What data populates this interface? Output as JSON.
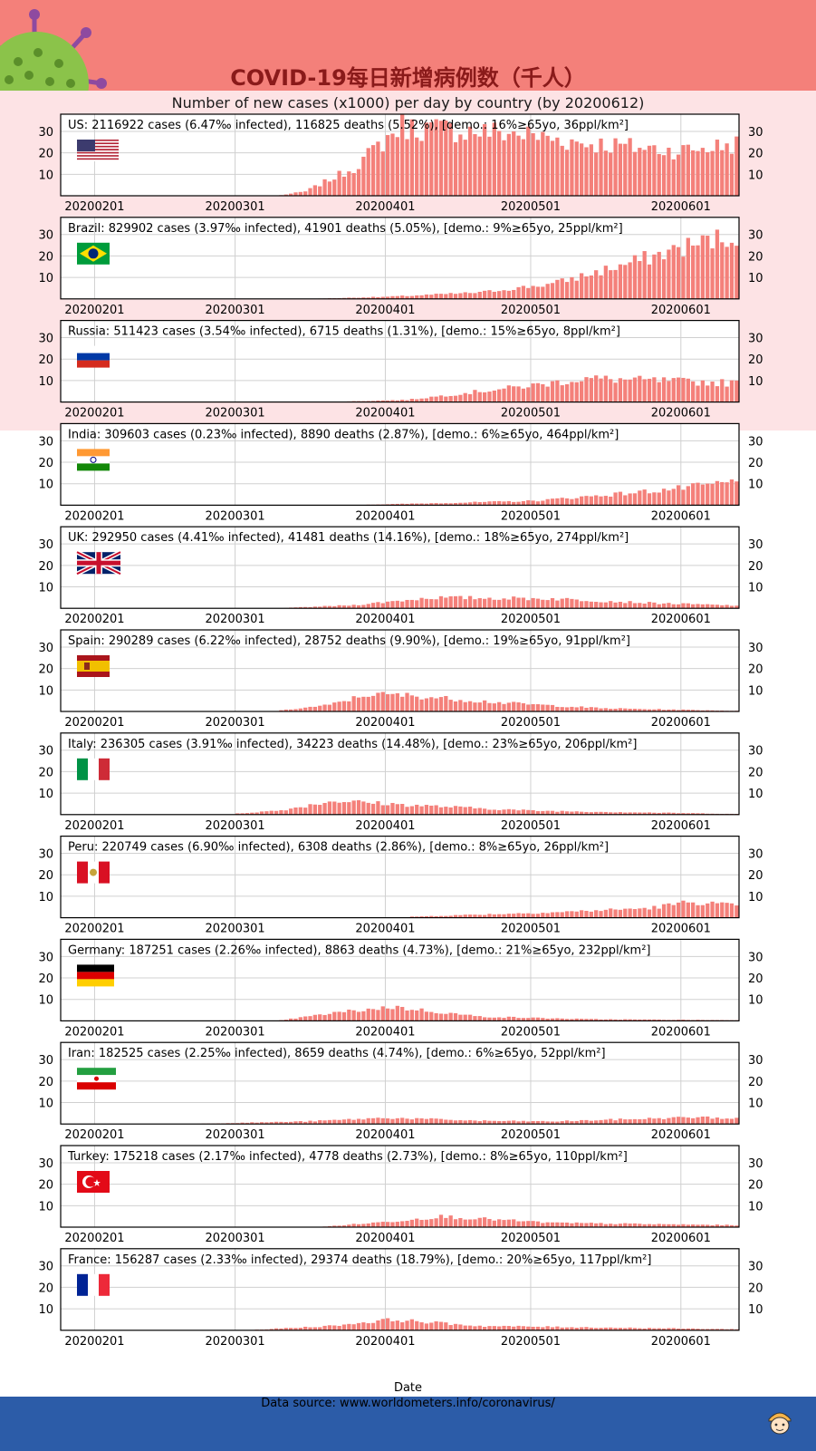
{
  "header": {
    "title": "COVID-19每日新增病例数（千人）",
    "subtitle": "Number of new cases (x1000) per day by country (by 20200612)"
  },
  "chart_data": {
    "type": "bar",
    "unit": "new cases (x1000) per day",
    "x_start": "20200125",
    "x_end": "20200612",
    "xticks": [
      "20200201",
      "20200301",
      "20200401",
      "20200501",
      "20200601"
    ],
    "yticks": [
      10,
      20,
      30
    ],
    "ylim": [
      0,
      38
    ],
    "xlabel": "Date",
    "bar_color": "#f4807a",
    "grid": true,
    "panels": [
      {
        "country": "US",
        "label": "US: 2116922 cases (6.47‰ infected), 116825 deaths (5.52%), [demo.: 16%≥65yo, 36ppl/km²]",
        "flag": "us-flag",
        "series": [
          {
            "start": "20200310",
            "end": "20200315",
            "from": 0.3,
            "to": 2
          },
          {
            "start": "20200315",
            "end": "20200325",
            "from": 2,
            "to": 13
          },
          {
            "start": "20200325",
            "end": "20200404",
            "from": 13,
            "to": 33
          },
          {
            "start": "20200404",
            "end": "20200428",
            "from": 32,
            "to": 29
          },
          {
            "start": "20200428",
            "end": "20200510",
            "from": 29,
            "to": 25
          },
          {
            "start": "20200510",
            "end": "20200531",
            "from": 25,
            "to": 21
          },
          {
            "start": "20200531",
            "end": "20200612",
            "from": 21,
            "to": 24
          }
        ]
      },
      {
        "country": "Brazil",
        "label": "Brazil: 829902 cases (3.97‰ infected), 41901 deaths (5.05%), [demo.: 9%≥65yo, 25ppl/km²]",
        "flag": "brazil-flag",
        "series": [
          {
            "start": "20200317",
            "end": "20200401",
            "from": 0.1,
            "to": 1
          },
          {
            "start": "20200401",
            "end": "20200420",
            "from": 1,
            "to": 3
          },
          {
            "start": "20200420",
            "end": "20200505",
            "from": 3,
            "to": 7
          },
          {
            "start": "20200505",
            "end": "20200520",
            "from": 7,
            "to": 16
          },
          {
            "start": "20200520",
            "end": "20200601",
            "from": 16,
            "to": 24
          },
          {
            "start": "20200601",
            "end": "20200612",
            "from": 24,
            "to": 30
          }
        ]
      },
      {
        "country": "Russia",
        "label": "Russia: 511423 cases (3.54‰ infected), 6715 deaths (1.31%), [demo.: 15%≥65yo, 8ppl/km²]",
        "flag": "russia-flag",
        "series": [
          {
            "start": "20200320",
            "end": "20200405",
            "from": 0.1,
            "to": 1
          },
          {
            "start": "20200405",
            "end": "20200420",
            "from": 1,
            "to": 5
          },
          {
            "start": "20200420",
            "end": "20200502",
            "from": 5,
            "to": 8
          },
          {
            "start": "20200502",
            "end": "20200512",
            "from": 8,
            "to": 11
          },
          {
            "start": "20200512",
            "end": "20200612",
            "from": 11,
            "to": 8.8
          }
        ]
      },
      {
        "country": "India",
        "label": "India: 309603 cases (0.23‰ infected), 8890 deaths (2.87%), [demo.: 6%≥65yo, 464ppl/km²]",
        "flag": "india-flag",
        "series": [
          {
            "start": "20200325",
            "end": "20200420",
            "from": 0.1,
            "to": 1.4
          },
          {
            "start": "20200420",
            "end": "20200501",
            "from": 1.4,
            "to": 2
          },
          {
            "start": "20200501",
            "end": "20200520",
            "from": 2,
            "to": 5.5
          },
          {
            "start": "20200520",
            "end": "20200601",
            "from": 5.5,
            "to": 8
          },
          {
            "start": "20200601",
            "end": "20200612",
            "from": 8,
            "to": 11
          }
        ]
      },
      {
        "country": "UK",
        "label": "UK: 292950 cases (4.41‰ infected), 41481 deaths (14.16%), [demo.: 18%≥65yo, 274ppl/km²]",
        "flag": "uk-flag",
        "series": [
          {
            "start": "20200310",
            "end": "20200325",
            "from": 0.1,
            "to": 1.5
          },
          {
            "start": "20200325",
            "end": "20200410",
            "from": 1.5,
            "to": 5
          },
          {
            "start": "20200410",
            "end": "20200505",
            "from": 5,
            "to": 4.5
          },
          {
            "start": "20200505",
            "end": "20200525",
            "from": 4.5,
            "to": 2.5
          },
          {
            "start": "20200525",
            "end": "20200612",
            "from": 2.5,
            "to": 1.3
          }
        ]
      },
      {
        "country": "Spain",
        "label": "Spain: 290289 cases (6.22‰ infected), 28752 deaths (9.90%), [demo.: 19%≥65yo, 91ppl/km²]",
        "flag": "spain-flag",
        "series": [
          {
            "start": "20200310",
            "end": "20200320",
            "from": 0.5,
            "to": 3
          },
          {
            "start": "20200320",
            "end": "20200328",
            "from": 3,
            "to": 8
          },
          {
            "start": "20200328",
            "end": "20200405",
            "from": 8,
            "to": 7.5
          },
          {
            "start": "20200405",
            "end": "20200425",
            "from": 7.5,
            "to": 4
          },
          {
            "start": "20200425",
            "end": "20200515",
            "from": 4,
            "to": 1.5
          },
          {
            "start": "20200515",
            "end": "20200612",
            "from": 1.5,
            "to": 0.3
          }
        ]
      },
      {
        "country": "Italy",
        "label": "Italy: 236305 cases (3.91‰ infected), 34223 deaths (14.48%), [demo.: 23%≥65yo, 206ppl/km²]",
        "flag": "italy-flag",
        "series": [
          {
            "start": "20200301",
            "end": "20200310",
            "from": 0.5,
            "to": 2
          },
          {
            "start": "20200310",
            "end": "20200321",
            "from": 2,
            "to": 6.5
          },
          {
            "start": "20200321",
            "end": "20200405",
            "from": 6.5,
            "to": 4.5
          },
          {
            "start": "20200405",
            "end": "20200501",
            "from": 4.5,
            "to": 1.8
          },
          {
            "start": "20200501",
            "end": "20200612",
            "from": 1.8,
            "to": 0.3
          }
        ]
      },
      {
        "country": "Peru",
        "label": "Peru: 220749 cases (6.90‰ infected), 6308 deaths (2.86%), [demo.: 8%≥65yo, 26ppl/km²]",
        "flag": "peru-flag",
        "series": [
          {
            "start": "20200406",
            "end": "20200420",
            "from": 0.5,
            "to": 1.5
          },
          {
            "start": "20200420",
            "end": "20200505",
            "from": 1.5,
            "to": 2.5
          },
          {
            "start": "20200505",
            "end": "20200525",
            "from": 2.5,
            "to": 4.5
          },
          {
            "start": "20200525",
            "end": "20200603",
            "from": 4.5,
            "to": 7.5
          },
          {
            "start": "20200603",
            "end": "20200612",
            "from": 7.5,
            "to": 5.5
          }
        ]
      },
      {
        "country": "Germany",
        "label": "Germany: 187251 cases (2.26‰ infected), 8863 deaths (4.73%), [demo.: 21%≥65yo, 232ppl/km²]",
        "flag": "germany-flag",
        "series": [
          {
            "start": "20200310",
            "end": "20200322",
            "from": 0.3,
            "to": 4
          },
          {
            "start": "20200322",
            "end": "20200402",
            "from": 4,
            "to": 6.5
          },
          {
            "start": "20200402",
            "end": "20200420",
            "from": 6.5,
            "to": 2
          },
          {
            "start": "20200420",
            "end": "20200512",
            "from": 2,
            "to": 0.8
          },
          {
            "start": "20200512",
            "end": "20200612",
            "from": 0.8,
            "to": 0.3
          }
        ]
      },
      {
        "country": "Iran",
        "label": "Iran: 182525 cases (2.25‰ infected), 8659 deaths (4.74%), [demo.: 6%≥65yo, 52ppl/km²]",
        "flag": "iran-flag",
        "series": [
          {
            "start": "20200221",
            "end": "20200315",
            "from": 0.1,
            "to": 1.2
          },
          {
            "start": "20200315",
            "end": "20200401",
            "from": 1.2,
            "to": 2.9
          },
          {
            "start": "20200401",
            "end": "20200420",
            "from": 2.9,
            "to": 1.5
          },
          {
            "start": "20200420",
            "end": "20200505",
            "from": 1.5,
            "to": 1.2
          },
          {
            "start": "20200505",
            "end": "20200604",
            "from": 1.2,
            "to": 3.2
          },
          {
            "start": "20200604",
            "end": "20200612",
            "from": 3.2,
            "to": 2.5
          }
        ]
      },
      {
        "country": "Turkey",
        "label": "Turkey: 175218 cases (2.17‰ infected), 4778 deaths (2.73%), [demo.: 8%≥65yo, 110ppl/km²]",
        "flag": "turkey-flag",
        "series": [
          {
            "start": "20200319",
            "end": "20200401",
            "from": 0.3,
            "to": 2.5
          },
          {
            "start": "20200401",
            "end": "20200412",
            "from": 2.5,
            "to": 5
          },
          {
            "start": "20200412",
            "end": "20200505",
            "from": 5,
            "to": 2
          },
          {
            "start": "20200505",
            "end": "20200612",
            "from": 2,
            "to": 0.9
          }
        ]
      },
      {
        "country": "France",
        "label": "France: 156287 cases (2.33‰ infected), 29374 deaths (18.79%), [demo.: 20%≥65yo, 117ppl/km²]",
        "flag": "france-flag",
        "series": [
          {
            "start": "20200305",
            "end": "20200320",
            "from": 0.3,
            "to": 2
          },
          {
            "start": "20200320",
            "end": "20200402",
            "from": 2,
            "to": 5
          },
          {
            "start": "20200402",
            "end": "20200420",
            "from": 5,
            "to": 2
          },
          {
            "start": "20200420",
            "end": "20200612",
            "from": 2,
            "to": 0.5
          }
        ]
      }
    ]
  },
  "footer": {
    "source": "Data source: www.worldometers.info/coronavirus/",
    "mascot_icon": "mascot-face-icon"
  }
}
